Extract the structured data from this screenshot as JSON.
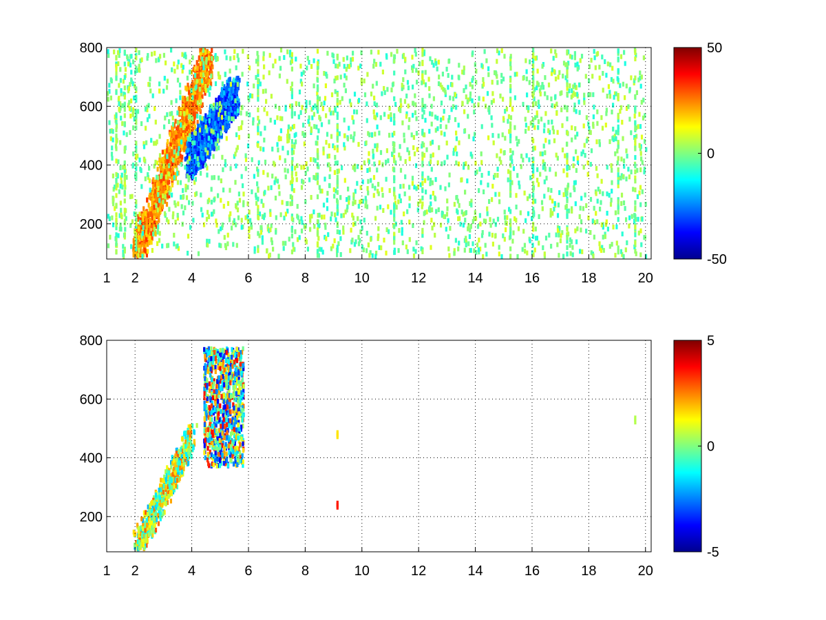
{
  "chart_data": [
    {
      "type": "heatmap",
      "title": "",
      "xlabel": "",
      "ylabel": "",
      "xlim": [
        1,
        20.2
      ],
      "ylim": [
        80,
        800
      ],
      "xticks": [
        1,
        2,
        4,
        6,
        8,
        10,
        12,
        14,
        16,
        18,
        20
      ],
      "xtick_labels": [
        "1",
        "2",
        "4",
        "6",
        "8",
        "10",
        "12",
        "14",
        "16",
        "18",
        "20"
      ],
      "yticks": [
        200,
        400,
        600,
        800
      ],
      "ytick_labels": [
        "200",
        "400",
        "600",
        "800"
      ],
      "grid": true,
      "colormap": "jet",
      "colorbar": {
        "min": -50,
        "max": 50,
        "ticks": [
          -50,
          0,
          50
        ],
        "tick_labels": [
          "-50",
          "0",
          "50"
        ]
      },
      "features": [
        {
          "desc": "positive ridge",
          "x_start": 2.0,
          "y_start": 100,
          "x_end": 4.6,
          "y_end": 780,
          "value": 30,
          "width_y": 70
        },
        {
          "desc": "negative ridge",
          "x_start": 3.9,
          "y_start": 420,
          "x_end": 5.5,
          "y_end": 650,
          "value": -35,
          "width_y": 60
        },
        {
          "desc": "sparse weak noise",
          "x_range": [
            1,
            20
          ],
          "y_range": [
            80,
            800
          ],
          "value_range": [
            -10,
            10
          ]
        }
      ]
    },
    {
      "type": "heatmap",
      "title": "",
      "xlabel": "",
      "ylabel": "",
      "xlim": [
        1,
        20.2
      ],
      "ylim": [
        80,
        800
      ],
      "xticks": [
        1,
        2,
        4,
        6,
        8,
        10,
        12,
        14,
        16,
        18,
        20
      ],
      "xtick_labels": [
        "1",
        "2",
        "4",
        "6",
        "8",
        "10",
        "12",
        "14",
        "16",
        "18",
        "20"
      ],
      "yticks": [
        200,
        400,
        600,
        800
      ],
      "ytick_labels": [
        "200",
        "400",
        "600",
        "800"
      ],
      "grid": true,
      "colormap": "jet",
      "colorbar": {
        "min": -5,
        "max": 5,
        "ticks": [
          -5,
          0,
          5
        ],
        "tick_labels": [
          "-5",
          "0",
          "5"
        ]
      },
      "features": [
        {
          "desc": "band",
          "x_start": 2.0,
          "y_start": 100,
          "x_end": 4.0,
          "y_end": 480,
          "value_range": [
            -2,
            3
          ]
        },
        {
          "desc": "cluster",
          "x_range": [
            4.4,
            5.8
          ],
          "y_range": [
            380,
            780
          ],
          "value_range": [
            -4,
            4
          ]
        },
        {
          "desc": "isolated",
          "x": 9.1,
          "y": 250,
          "value": 3.5
        },
        {
          "desc": "isolated",
          "x": 9.1,
          "y": 490,
          "value": 1.5
        },
        {
          "desc": "isolated",
          "x": 19.6,
          "y": 540,
          "value": 0.5
        }
      ]
    }
  ]
}
